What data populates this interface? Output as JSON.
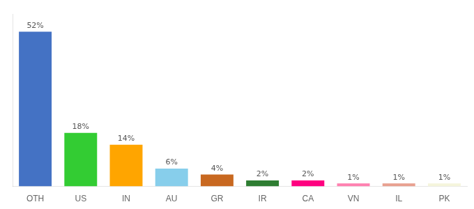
{
  "chart_data": {
    "type": "bar",
    "categories": [
      "OTH",
      "US",
      "IN",
      "AU",
      "GR",
      "IR",
      "CA",
      "VN",
      "IL",
      "PK"
    ],
    "values": [
      52,
      18,
      14,
      6,
      4,
      2,
      2,
      1,
      1,
      1
    ],
    "value_labels": [
      "52%",
      "18%",
      "14%",
      "6%",
      "4%",
      "2%",
      "2%",
      "1%",
      "1%",
      "1%"
    ],
    "colors": [
      "#4472C4",
      "#33CC33",
      "#FFA500",
      "#87CEEB",
      "#C86820",
      "#2E7D32",
      "#FF0080",
      "#FF80B0",
      "#E8A090",
      "#F5F5DC"
    ],
    "ylim": [
      0,
      58
    ],
    "grid": false,
    "data_labels": true,
    "tick_labels": "x"
  }
}
